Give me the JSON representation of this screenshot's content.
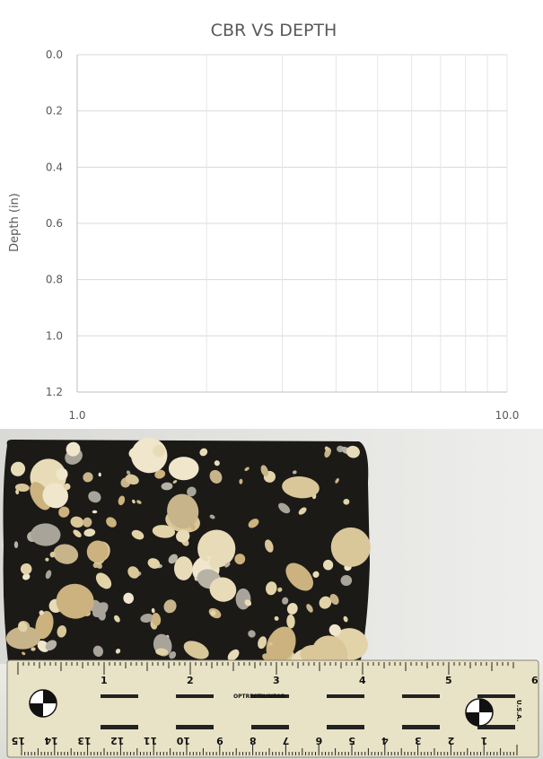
{
  "chart_data": {
    "type": "scatter",
    "title": "CBR VS DEPTH",
    "xlabel": "",
    "ylabel": "Depth (in)",
    "x_scale": "log",
    "xlim": [
      1.0,
      10.0
    ],
    "ylim": [
      0.0,
      1.2
    ],
    "y_inverted": true,
    "x_ticks": [
      "1.0",
      "10.0"
    ],
    "y_ticks": [
      "0.0",
      "0.2",
      "0.4",
      "0.6",
      "0.8",
      "1.0",
      "1.2"
    ],
    "grid": true,
    "series": []
  },
  "photo": {
    "subject": "asphalt-core-sample",
    "ruler": {
      "top_numbers": [
        "1",
        "2",
        "3",
        "4",
        "5",
        "6"
      ],
      "bottom_numbers": [
        "15",
        "14",
        "13",
        "12",
        "11",
        "10",
        "9",
        "8",
        "7",
        "6",
        "5",
        "4",
        "3",
        "2",
        "1"
      ],
      "brand": "OPTRECTILINEAR",
      "country": "U.S.A."
    }
  }
}
